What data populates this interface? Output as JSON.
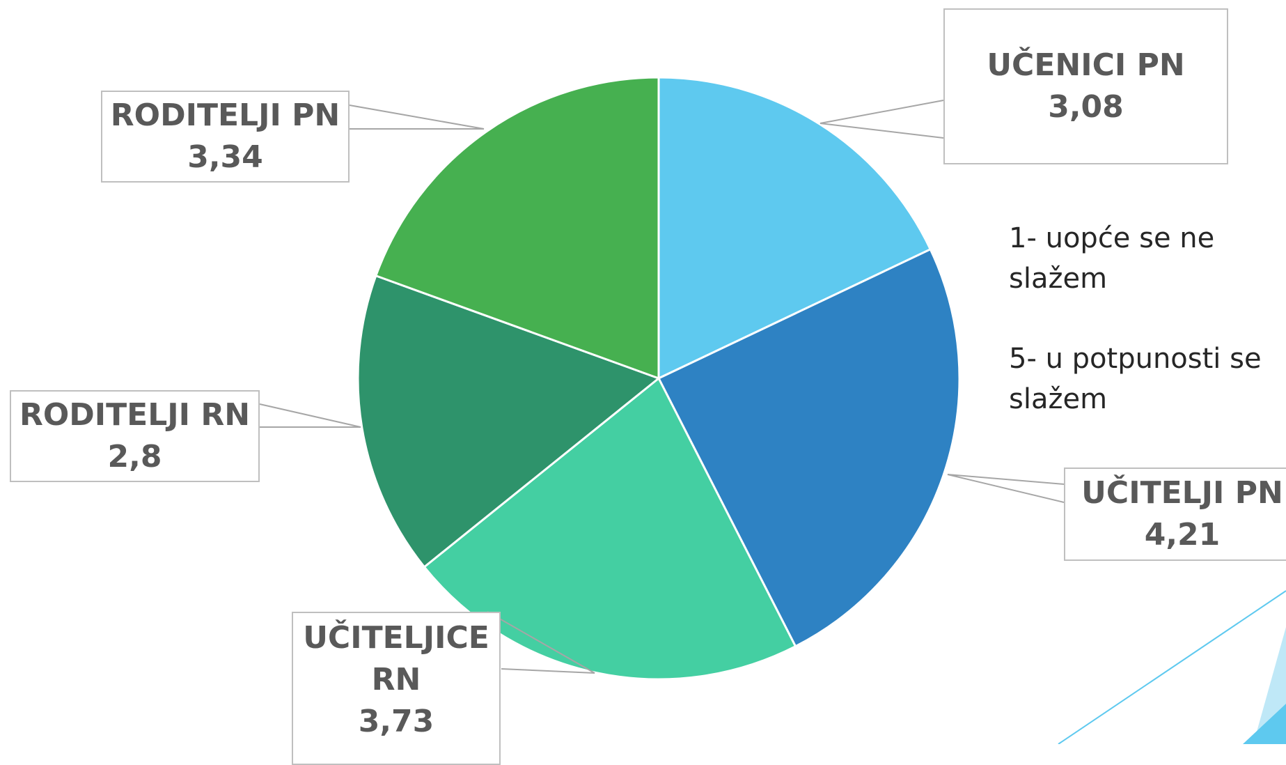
{
  "chart_data": {
    "type": "pie",
    "categories": [
      "UČENICI PN",
      "UČITELJI PN",
      "UČITELJICE RN",
      "RODITELJI RN",
      "RODITELJI PN"
    ],
    "values": [
      3.08,
      4.21,
      3.73,
      2.8,
      3.34
    ],
    "value_labels": [
      "3,08",
      "4,21",
      "3,73",
      "2,8",
      "3,34"
    ],
    "colors": [
      "#5ec9ef",
      "#2e82c3",
      "#44cfa2",
      "#2e936b",
      "#46b050"
    ],
    "notes": [
      "1- uopće se ne slažem",
      "5- u potpunosti se slažem"
    ]
  }
}
